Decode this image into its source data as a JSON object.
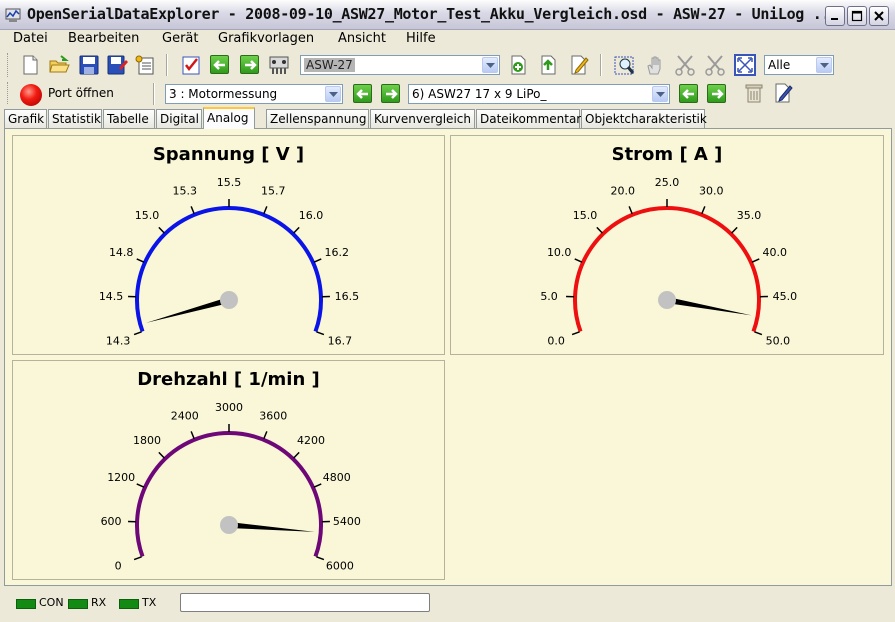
{
  "window": {
    "title": "OpenSerialDataExplorer  -  2008-09-10_ASW27_Motor_Test_Akku_Vergleich.osd  -  ASW-27  -  UniLog ..."
  },
  "menu": [
    "Datei",
    "Bearbeiten",
    "Gerät",
    "Grafikvorlagen",
    "Ansicht",
    "Hilfe"
  ],
  "toolbar": {
    "device_combo": "ASW-27",
    "filter_combo": "Alle",
    "port_label": "Port öffnen",
    "record_set_combo": "3 : Motormessung",
    "object_combo": "6) ASW27 17 x 9 LiPo_"
  },
  "tabs": [
    {
      "label": "Grafik",
      "active": false
    },
    {
      "label": "Statistik",
      "active": false
    },
    {
      "label": "Tabelle",
      "active": false
    },
    {
      "label": "Digital",
      "active": false
    },
    {
      "label": "Analog",
      "active": true
    },
    {
      "label": "Zellenspannung",
      "active": false
    },
    {
      "label": "Kurvenvergleich",
      "active": false
    },
    {
      "label": "Dateikommentar",
      "active": false
    },
    {
      "label": "Objektcharakteristik",
      "active": false
    }
  ],
  "gauges": [
    {
      "title": "Spannung [ V ]",
      "color": "#0a14e6",
      "min": 14.3,
      "max": 16.7,
      "ticks": [
        "14.3",
        "14.5",
        "14.8",
        "15.0",
        "15.3",
        "15.5",
        "15.7",
        "16.0",
        "16.2",
        "16.5",
        "16.7"
      ],
      "value": 14.35
    },
    {
      "title": "Strom [ A ]",
      "color": "#ee1010",
      "min": 0,
      "max": 50,
      "ticks": [
        "0.0",
        "5.0",
        "10.0",
        "15.0",
        "20.0",
        "25.0",
        "30.0",
        "35.0",
        "40.0",
        "45.0",
        "50.0"
      ],
      "value": 47.8
    },
    {
      "title": "Drehzahl [ 1/min ]",
      "color": "#6e0878",
      "min": 0,
      "max": 6000,
      "ticks": [
        "0",
        "600",
        "1200",
        "1800",
        "2400",
        "3000",
        "3600",
        "4200",
        "4800",
        "5400",
        "6000"
      ],
      "value": 5580
    }
  ],
  "status": {
    "con": "CON",
    "rx": "RX",
    "tx": "TX"
  }
}
